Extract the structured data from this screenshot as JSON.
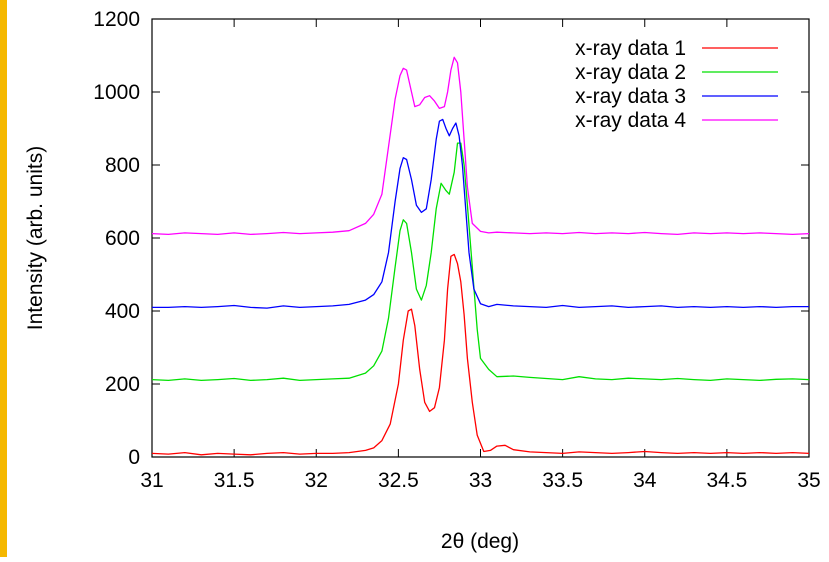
{
  "chart_data": {
    "type": "line",
    "title": "",
    "xlabel": "2θ (deg)",
    "ylabel": "Intensity (arb. units)",
    "xlim": [
      31,
      35
    ],
    "ylim": [
      0,
      1200
    ],
    "x_ticks": [
      31,
      31.5,
      32,
      32.5,
      33,
      33.5,
      34,
      34.5,
      35
    ],
    "x_tick_labels": [
      "31",
      "31.5",
      "32",
      "32.5",
      "33",
      "33.5",
      "34",
      "34.5",
      "35"
    ],
    "y_ticks": [
      0,
      200,
      400,
      600,
      800,
      1000,
      1200
    ],
    "y_tick_labels": [
      "0",
      "200",
      "400",
      "600",
      "800",
      "1000",
      "1200"
    ],
    "grid": false,
    "legend_position": "top-right",
    "colors": {
      "frame": "#000000",
      "left_strip": "#f5b800"
    },
    "series": [
      {
        "name": "x-ray data 1",
        "color": "#ff0000",
        "x": [
          31.0,
          31.1,
          31.2,
          31.3,
          31.4,
          31.5,
          31.6,
          31.7,
          31.8,
          31.9,
          32.0,
          32.1,
          32.2,
          32.3,
          32.35,
          32.4,
          32.45,
          32.5,
          32.53,
          32.56,
          32.58,
          32.6,
          32.63,
          32.66,
          32.69,
          32.72,
          32.75,
          32.78,
          32.8,
          32.82,
          32.84,
          32.86,
          32.88,
          32.9,
          32.92,
          32.95,
          32.98,
          33.02,
          33.06,
          33.1,
          33.15,
          33.2,
          33.3,
          33.4,
          33.5,
          33.6,
          33.7,
          33.8,
          33.9,
          34.0,
          34.1,
          34.2,
          34.3,
          34.4,
          34.5,
          34.6,
          34.7,
          34.8,
          34.9,
          35.0
        ],
        "y": [
          10,
          8,
          12,
          6,
          10,
          8,
          6,
          10,
          12,
          8,
          10,
          10,
          12,
          18,
          25,
          45,
          90,
          200,
          320,
          400,
          405,
          360,
          240,
          150,
          125,
          135,
          190,
          320,
          460,
          550,
          555,
          530,
          480,
          390,
          270,
          150,
          60,
          15,
          18,
          30,
          32,
          20,
          14,
          12,
          10,
          14,
          12,
          10,
          12,
          15,
          12,
          10,
          12,
          10,
          12,
          10,
          12,
          10,
          12,
          10
        ]
      },
      {
        "name": "x-ray data 2",
        "color": "#00e000",
        "x": [
          31.0,
          31.1,
          31.2,
          31.3,
          31.4,
          31.5,
          31.6,
          31.7,
          31.8,
          31.9,
          32.0,
          32.1,
          32.2,
          32.3,
          32.35,
          32.4,
          32.44,
          32.48,
          32.51,
          32.53,
          32.55,
          32.58,
          32.61,
          32.64,
          32.67,
          32.7,
          32.73,
          32.76,
          32.79,
          32.81,
          32.84,
          32.86,
          32.88,
          32.9,
          32.92,
          32.95,
          32.98,
          33.0,
          33.05,
          33.1,
          33.2,
          33.3,
          33.4,
          33.5,
          33.6,
          33.7,
          33.8,
          33.9,
          34.0,
          34.1,
          34.2,
          34.3,
          34.4,
          34.5,
          34.6,
          34.7,
          34.8,
          34.9,
          35.0
        ],
        "y": [
          212,
          210,
          214,
          210,
          212,
          215,
          210,
          212,
          216,
          210,
          212,
          214,
          216,
          230,
          250,
          290,
          380,
          520,
          620,
          650,
          640,
          560,
          460,
          430,
          470,
          560,
          680,
          750,
          730,
          720,
          780,
          860,
          860,
          800,
          690,
          520,
          350,
          270,
          240,
          220,
          222,
          218,
          215,
          212,
          220,
          214,
          212,
          216,
          214,
          212,
          215,
          212,
          210,
          214,
          212,
          210,
          213,
          214,
          212
        ]
      },
      {
        "name": "x-ray data 3",
        "color": "#0000ff",
        "x": [
          31.0,
          31.1,
          31.2,
          31.3,
          31.4,
          31.5,
          31.6,
          31.7,
          31.8,
          31.9,
          32.0,
          32.1,
          32.2,
          32.3,
          32.35,
          32.4,
          32.44,
          32.48,
          32.51,
          32.53,
          32.55,
          32.58,
          32.61,
          32.64,
          32.67,
          32.7,
          32.73,
          32.75,
          32.77,
          32.79,
          32.81,
          32.83,
          32.85,
          32.87,
          32.89,
          32.91,
          32.93,
          32.96,
          33.0,
          33.05,
          33.1,
          33.2,
          33.3,
          33.4,
          33.5,
          33.6,
          33.7,
          33.8,
          33.9,
          34.0,
          34.1,
          34.2,
          34.3,
          34.4,
          34.5,
          34.6,
          34.7,
          34.8,
          34.9,
          35.0
        ],
        "y": [
          410,
          410,
          412,
          410,
          412,
          415,
          410,
          408,
          414,
          410,
          412,
          414,
          418,
          430,
          445,
          480,
          560,
          700,
          790,
          820,
          815,
          760,
          690,
          670,
          680,
          760,
          870,
          920,
          925,
          900,
          880,
          900,
          915,
          880,
          800,
          680,
          560,
          460,
          420,
          412,
          418,
          414,
          412,
          410,
          415,
          410,
          412,
          414,
          410,
          412,
          414,
          410,
          412,
          410,
          412,
          410,
          412,
          410,
          412,
          412
        ]
      },
      {
        "name": "x-ray data 4",
        "color": "#ff00ff",
        "x": [
          31.0,
          31.1,
          31.2,
          31.3,
          31.4,
          31.5,
          31.6,
          31.7,
          31.8,
          31.9,
          32.0,
          32.1,
          32.2,
          32.3,
          32.35,
          32.4,
          32.44,
          32.48,
          32.51,
          32.53,
          32.55,
          32.58,
          32.6,
          32.63,
          32.66,
          32.69,
          32.72,
          32.75,
          32.78,
          32.8,
          32.82,
          32.84,
          32.86,
          32.88,
          32.9,
          32.92,
          32.95,
          33.0,
          33.05,
          33.1,
          33.2,
          33.3,
          33.4,
          33.5,
          33.6,
          33.7,
          33.8,
          33.9,
          34.0,
          34.1,
          34.2,
          34.3,
          34.4,
          34.5,
          34.6,
          34.7,
          34.8,
          34.9,
          35.0
        ],
        "y": [
          612,
          610,
          614,
          612,
          610,
          614,
          610,
          612,
          615,
          612,
          614,
          616,
          620,
          640,
          665,
          720,
          850,
          980,
          1045,
          1065,
          1060,
          1000,
          960,
          965,
          985,
          990,
          975,
          955,
          960,
          1000,
          1060,
          1095,
          1080,
          1000,
          870,
          740,
          640,
          618,
          614,
          616,
          614,
          612,
          614,
          612,
          615,
          612,
          614,
          612,
          615,
          612,
          610,
          614,
          612,
          614,
          612,
          614,
          612,
          610,
          612
        ]
      }
    ]
  }
}
